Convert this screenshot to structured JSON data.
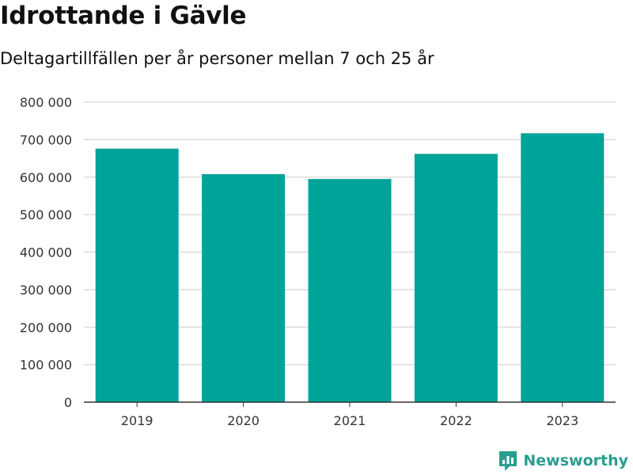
{
  "title": "Idrottande i Gävle",
  "subtitle": "Deltagartillfällen per år personer mellan 7 och 25 år",
  "brand": {
    "name": "Newsworthy",
    "color": "#2a9d8f",
    "logo_icon": "bar-chart-icon"
  },
  "chart_data": {
    "type": "bar",
    "categories": [
      "2019",
      "2020",
      "2021",
      "2022",
      "2023"
    ],
    "values": [
      676000,
      608000,
      595000,
      662000,
      717000
    ],
    "title": "Idrottande i Gävle",
    "subtitle": "Deltagartillfällen per år personer mellan 7 och 25 år",
    "xlabel": "",
    "ylabel": "",
    "ylim": [
      0,
      800000
    ],
    "yticks": [
      0,
      100000,
      200000,
      300000,
      400000,
      500000,
      600000,
      700000,
      800000
    ],
    "ytick_labels": [
      "0",
      "100 000",
      "200 000",
      "300 000",
      "400 000",
      "500 000",
      "600 000",
      "700 000",
      "800 000"
    ],
    "grid": true,
    "bar_color": "#00a398"
  }
}
